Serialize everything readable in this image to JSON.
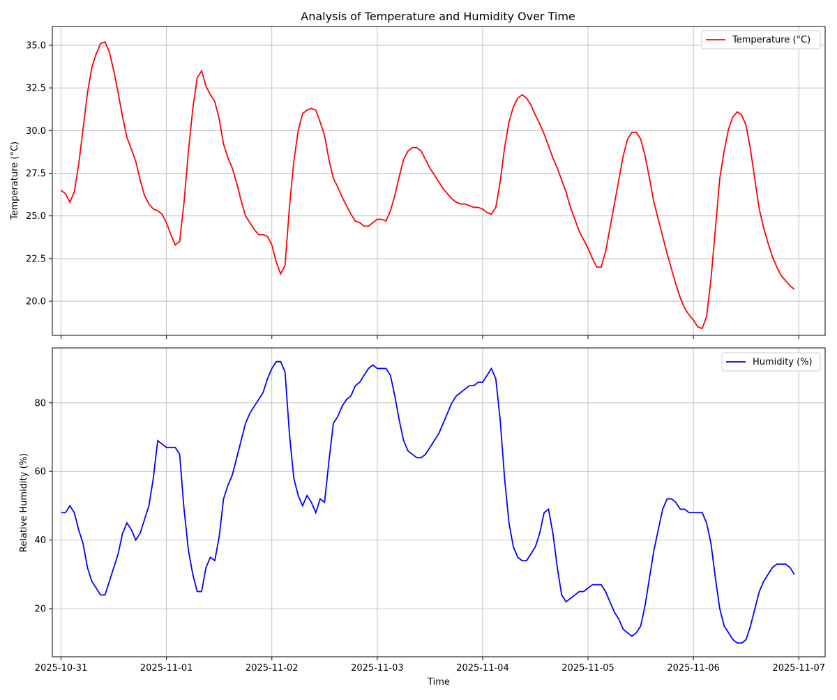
{
  "chart_data": [
    {
      "type": "line",
      "title": "Analysis of Temperature and Humidity Over Time",
      "xlabel": "",
      "ylabel": "Temperature (°C)",
      "ylim": [
        18,
        36.1
      ],
      "xlim": [
        "2025-10-30T22:00",
        "2025-11-07T06:00"
      ],
      "yticks": [
        20.0,
        22.5,
        25.0,
        27.5,
        30.0,
        32.5,
        35.0
      ],
      "ytick_labels": [
        "20.0",
        "22.5",
        "25.0",
        "27.5",
        "30.0",
        "32.5",
        "35.0"
      ],
      "grid": true,
      "legend": "top-right",
      "color": "#ff0000",
      "series": [
        {
          "name": "Temperature (°C)",
          "x": [
            "2025-10-31T00:00",
            "2025-10-31T01:00",
            "2025-10-31T02:00",
            "2025-10-31T03:00",
            "2025-10-31T04:00",
            "2025-10-31T05:00",
            "2025-10-31T06:00",
            "2025-10-31T07:00",
            "2025-10-31T08:00",
            "2025-10-31T09:00",
            "2025-10-31T10:00",
            "2025-10-31T11:00",
            "2025-10-31T12:00",
            "2025-10-31T13:00",
            "2025-10-31T14:00",
            "2025-10-31T15:00",
            "2025-10-31T16:00",
            "2025-10-31T17:00",
            "2025-10-31T18:00",
            "2025-10-31T19:00",
            "2025-10-31T20:00",
            "2025-10-31T21:00",
            "2025-10-31T22:00",
            "2025-10-31T23:00",
            "2025-11-01T00:00",
            "2025-11-01T01:00",
            "2025-11-01T02:00",
            "2025-11-01T03:00",
            "2025-11-01T04:00",
            "2025-11-01T05:00",
            "2025-11-01T06:00",
            "2025-11-01T07:00",
            "2025-11-01T08:00",
            "2025-11-01T09:00",
            "2025-11-01T10:00",
            "2025-11-01T11:00",
            "2025-11-01T12:00",
            "2025-11-01T13:00",
            "2025-11-01T14:00",
            "2025-11-01T15:00",
            "2025-11-01T16:00",
            "2025-11-01T17:00",
            "2025-11-01T18:00",
            "2025-11-01T19:00",
            "2025-11-01T20:00",
            "2025-11-01T21:00",
            "2025-11-01T22:00",
            "2025-11-01T23:00",
            "2025-11-02T00:00",
            "2025-11-02T01:00",
            "2025-11-02T02:00",
            "2025-11-02T03:00",
            "2025-11-02T04:00",
            "2025-11-02T05:00",
            "2025-11-02T06:00",
            "2025-11-02T07:00",
            "2025-11-02T08:00",
            "2025-11-02T09:00",
            "2025-11-02T10:00",
            "2025-11-02T11:00",
            "2025-11-02T12:00",
            "2025-11-02T13:00",
            "2025-11-02T14:00",
            "2025-11-02T15:00",
            "2025-11-02T16:00",
            "2025-11-02T17:00",
            "2025-11-02T18:00",
            "2025-11-02T19:00",
            "2025-11-02T20:00",
            "2025-11-02T21:00",
            "2025-11-02T22:00",
            "2025-11-02T23:00",
            "2025-11-03T00:00",
            "2025-11-03T01:00",
            "2025-11-03T02:00",
            "2025-11-03T03:00",
            "2025-11-03T04:00",
            "2025-11-03T05:00",
            "2025-11-03T06:00",
            "2025-11-03T07:00",
            "2025-11-03T08:00",
            "2025-11-03T09:00",
            "2025-11-03T10:00",
            "2025-11-03T11:00",
            "2025-11-03T12:00",
            "2025-11-03T13:00",
            "2025-11-03T14:00",
            "2025-11-03T15:00",
            "2025-11-03T16:00",
            "2025-11-03T17:00",
            "2025-11-03T18:00",
            "2025-11-03T19:00",
            "2025-11-03T20:00",
            "2025-11-03T21:00",
            "2025-11-03T22:00",
            "2025-11-03T23:00",
            "2025-11-04T00:00",
            "2025-11-04T01:00",
            "2025-11-04T02:00",
            "2025-11-04T03:00",
            "2025-11-04T04:00",
            "2025-11-04T05:00",
            "2025-11-04T06:00",
            "2025-11-04T07:00",
            "2025-11-04T08:00",
            "2025-11-04T09:00",
            "2025-11-04T10:00",
            "2025-11-04T11:00",
            "2025-11-04T12:00",
            "2025-11-04T13:00",
            "2025-11-04T14:00",
            "2025-11-04T15:00",
            "2025-11-04T16:00",
            "2025-11-04T17:00",
            "2025-11-04T18:00",
            "2025-11-04T19:00",
            "2025-11-04T20:00",
            "2025-11-04T21:00",
            "2025-11-04T22:00",
            "2025-11-04T23:00",
            "2025-11-05T00:00",
            "2025-11-05T01:00",
            "2025-11-05T02:00",
            "2025-11-05T03:00",
            "2025-11-05T04:00",
            "2025-11-05T05:00",
            "2025-11-05T06:00",
            "2025-11-05T07:00",
            "2025-11-05T08:00",
            "2025-11-05T09:00",
            "2025-11-05T10:00",
            "2025-11-05T11:00",
            "2025-11-05T12:00",
            "2025-11-05T13:00",
            "2025-11-05T14:00",
            "2025-11-05T15:00",
            "2025-11-05T16:00",
            "2025-11-05T17:00",
            "2025-11-05T18:00",
            "2025-11-05T19:00",
            "2025-11-05T20:00",
            "2025-11-05T21:00",
            "2025-11-05T22:00",
            "2025-11-05T23:00",
            "2025-11-06T00:00",
            "2025-11-06T01:00",
            "2025-11-06T02:00",
            "2025-11-06T03:00",
            "2025-11-06T04:00",
            "2025-11-06T05:00",
            "2025-11-06T06:00",
            "2025-11-06T07:00",
            "2025-11-06T08:00",
            "2025-11-06T09:00",
            "2025-11-06T10:00",
            "2025-11-06T11:00",
            "2025-11-06T12:00",
            "2025-11-06T13:00",
            "2025-11-06T14:00",
            "2025-11-06T15:00",
            "2025-11-06T16:00",
            "2025-11-06T17:00",
            "2025-11-06T18:00",
            "2025-11-06T19:00",
            "2025-11-06T20:00",
            "2025-11-06T21:00",
            "2025-11-06T22:00",
            "2025-11-06T23:00"
          ],
          "values": [
            26.5,
            26.3,
            25.8,
            26.4,
            28.0,
            30.1,
            32.2,
            33.7,
            34.5,
            35.1,
            35.2,
            34.6,
            33.5,
            32.2,
            30.8,
            29.6,
            28.9,
            28.2,
            27.1,
            26.2,
            25.7,
            25.4,
            25.3,
            25.1,
            24.6,
            23.9,
            23.3,
            23.5,
            25.8,
            28.8,
            31.3,
            33.1,
            33.5,
            32.6,
            32.1,
            31.7,
            30.7,
            29.2,
            28.4,
            27.8,
            26.9,
            25.9,
            25.0,
            24.6,
            24.2,
            23.9,
            23.9,
            23.8,
            23.3,
            22.3,
            21.6,
            22.1,
            25.5,
            28.2,
            30.0,
            31.0,
            31.2,
            31.3,
            31.2,
            30.5,
            29.7,
            28.3,
            27.2,
            26.7,
            26.1,
            25.6,
            25.1,
            24.7,
            24.6,
            24.4,
            24.4,
            24.6,
            24.8,
            24.8,
            24.7,
            25.3,
            26.2,
            27.3,
            28.3,
            28.8,
            29.0,
            29.0,
            28.8,
            28.3,
            27.8,
            27.4,
            27.0,
            26.6,
            26.3,
            26.0,
            25.8,
            25.7,
            25.7,
            25.6,
            25.5,
            25.5,
            25.4,
            25.2,
            25.1,
            25.5,
            27.0,
            29.0,
            30.5,
            31.4,
            31.9,
            32.1,
            31.9,
            31.5,
            30.9,
            30.4,
            29.8,
            29.1,
            28.4,
            27.8,
            27.1,
            26.4,
            25.5,
            24.8,
            24.1,
            23.6,
            23.1,
            22.5,
            22.0,
            22.0,
            22.9,
            24.3,
            25.7,
            27.1,
            28.5,
            29.5,
            29.9,
            29.9,
            29.5,
            28.5,
            27.2,
            25.8,
            24.8,
            23.8,
            22.8,
            21.9,
            21.0,
            20.2,
            19.6,
            19.2,
            18.9,
            18.5,
            18.4,
            19.1,
            21.3,
            24.2,
            27.2,
            28.8,
            30.1,
            30.8,
            31.1,
            30.9,
            30.3,
            28.9,
            27.1,
            25.4,
            24.3,
            23.4,
            22.6,
            22.0,
            21.5,
            21.2,
            20.9,
            20.7
          ]
        }
      ]
    },
    {
      "type": "line",
      "title": "",
      "xlabel": "Time",
      "ylabel": "Relative Humidity (%)",
      "ylim": [
        6,
        96
      ],
      "xlim": [
        "2025-10-30T22:00",
        "2025-11-07T06:00"
      ],
      "yticks": [
        20,
        40,
        60,
        80
      ],
      "ytick_labels": [
        "20",
        "40",
        "60",
        "80"
      ],
      "xticks": [
        "2025-10-31",
        "2025-11-01",
        "2025-11-02",
        "2025-11-03",
        "2025-11-04",
        "2025-11-05",
        "2025-11-06",
        "2025-11-07"
      ],
      "xtick_labels": [
        "2025-10-31",
        "2025-11-01",
        "2025-11-02",
        "2025-11-03",
        "2025-11-04",
        "2025-11-05",
        "2025-11-06",
        "2025-11-07"
      ],
      "grid": true,
      "legend": "top-right",
      "color": "#0000ff",
      "series": [
        {
          "name": "Humidity (%)",
          "values": [
            48,
            48,
            50,
            48,
            43,
            39,
            32,
            28,
            26,
            24,
            24,
            28,
            32,
            36,
            42,
            45,
            43,
            40,
            42,
            46,
            50,
            58,
            69,
            68,
            67,
            67,
            67,
            65,
            49,
            37,
            30,
            25,
            25,
            32,
            35,
            34,
            41,
            52,
            56,
            59,
            64,
            69,
            74,
            77,
            79,
            81,
            83,
            87,
            90,
            92,
            92,
            89,
            71,
            58,
            53,
            50,
            53,
            51,
            48,
            52,
            51,
            63,
            74,
            76,
            79,
            81,
            82,
            85,
            86,
            88,
            90,
            91,
            90,
            90,
            90,
            88,
            82,
            75,
            69,
            66,
            65,
            64,
            64,
            65,
            67,
            69,
            71,
            74,
            77,
            80,
            82,
            83,
            84,
            85,
            85,
            86,
            86,
            88,
            90,
            87,
            75,
            58,
            45,
            38,
            35,
            34,
            34,
            36,
            38,
            42,
            48,
            49,
            42,
            32,
            24,
            22,
            23,
            24,
            25,
            25,
            26,
            27,
            27,
            27,
            25,
            22,
            19,
            17,
            14,
            13,
            12,
            13,
            15,
            21,
            29,
            37,
            43,
            49,
            52,
            52,
            51,
            49,
            49,
            48,
            48,
            48,
            48,
            45,
            39,
            29,
            20,
            15,
            13,
            11,
            10,
            10,
            11,
            15,
            20,
            25,
            28,
            30,
            32,
            33,
            33,
            33,
            32,
            30
          ]
        }
      ]
    }
  ]
}
